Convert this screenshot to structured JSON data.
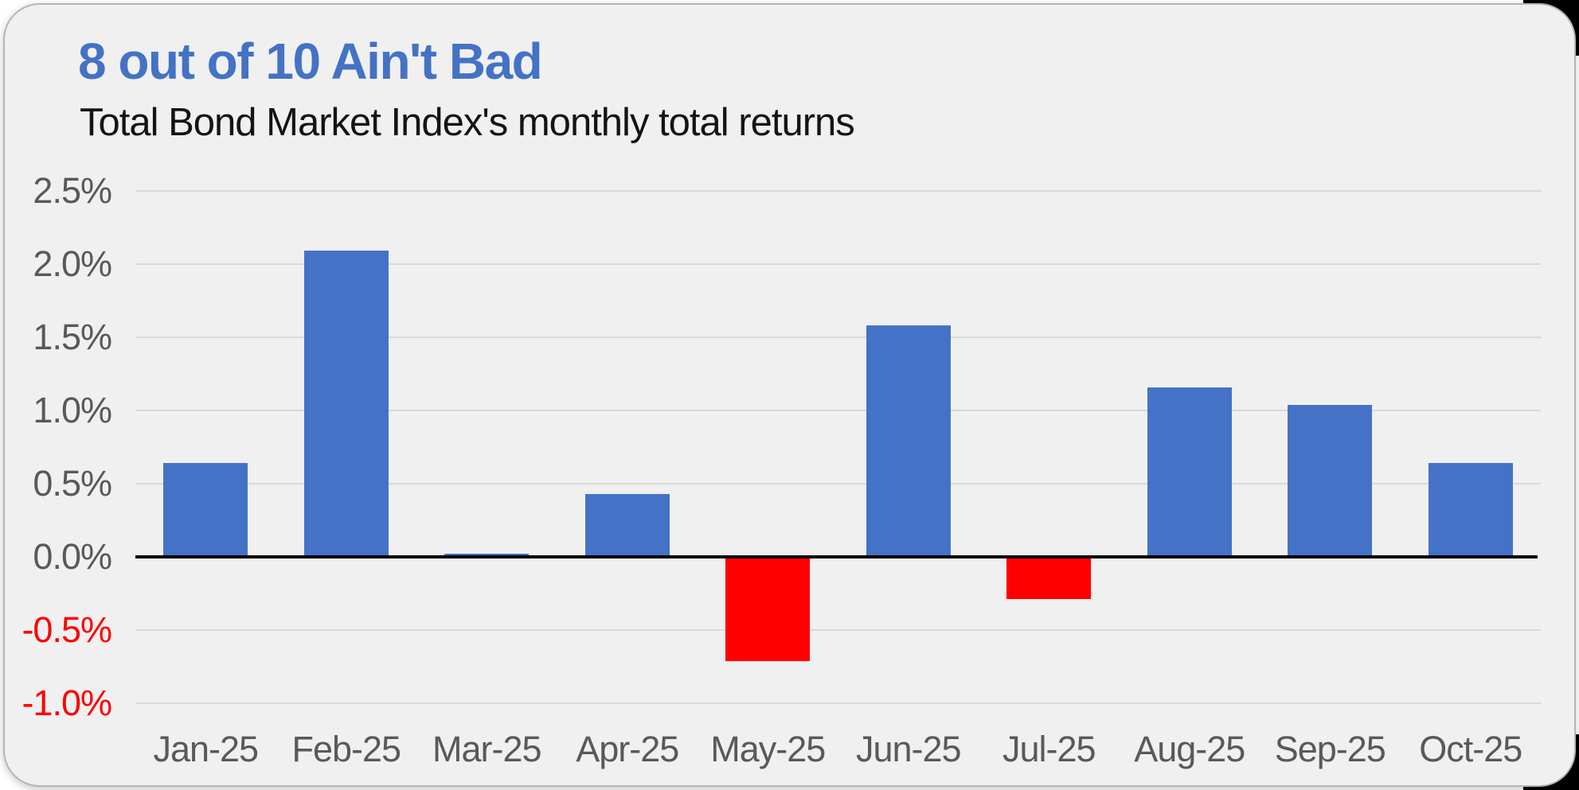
{
  "chart_data": {
    "type": "bar",
    "title": "8 out of 10 Ain't Bad",
    "subtitle": "Total Bond Market Index's monthly total returns",
    "categories": [
      "Jan-25",
      "Feb-25",
      "Mar-25",
      "Apr-25",
      "May-25",
      "Jun-25",
      "Jul-25",
      "Aug-25",
      "Sep-25",
      "Oct-25"
    ],
    "values": [
      0.64,
      2.09,
      0.02,
      0.43,
      -0.71,
      1.58,
      -0.29,
      1.16,
      1.04,
      0.64
    ],
    "unit": "%",
    "xlabel": "",
    "ylabel": "",
    "y_axis": {
      "min": -1.0,
      "max": 2.5,
      "step": 0.5,
      "tick_suffix": "%"
    },
    "y_tick_labels": [
      "2.5%",
      "2.0%",
      "1.5%",
      "1.0%",
      "0.5%",
      "0.0%",
      "-0.5%",
      "-1.0%"
    ],
    "grid": "horizontal",
    "legend": "none",
    "colors": {
      "positive_bar": "#4472c7",
      "negative_bar": "#ff0000",
      "title": "#4472c4",
      "subtitle": "#141414",
      "tick_label": "#595959",
      "negative_tick_label": "#ff0000",
      "gridline": "#d9d9d9",
      "axis_line": "#000000",
      "card_background": "#f0f0f1",
      "card_border": "#b5b5b5"
    }
  }
}
